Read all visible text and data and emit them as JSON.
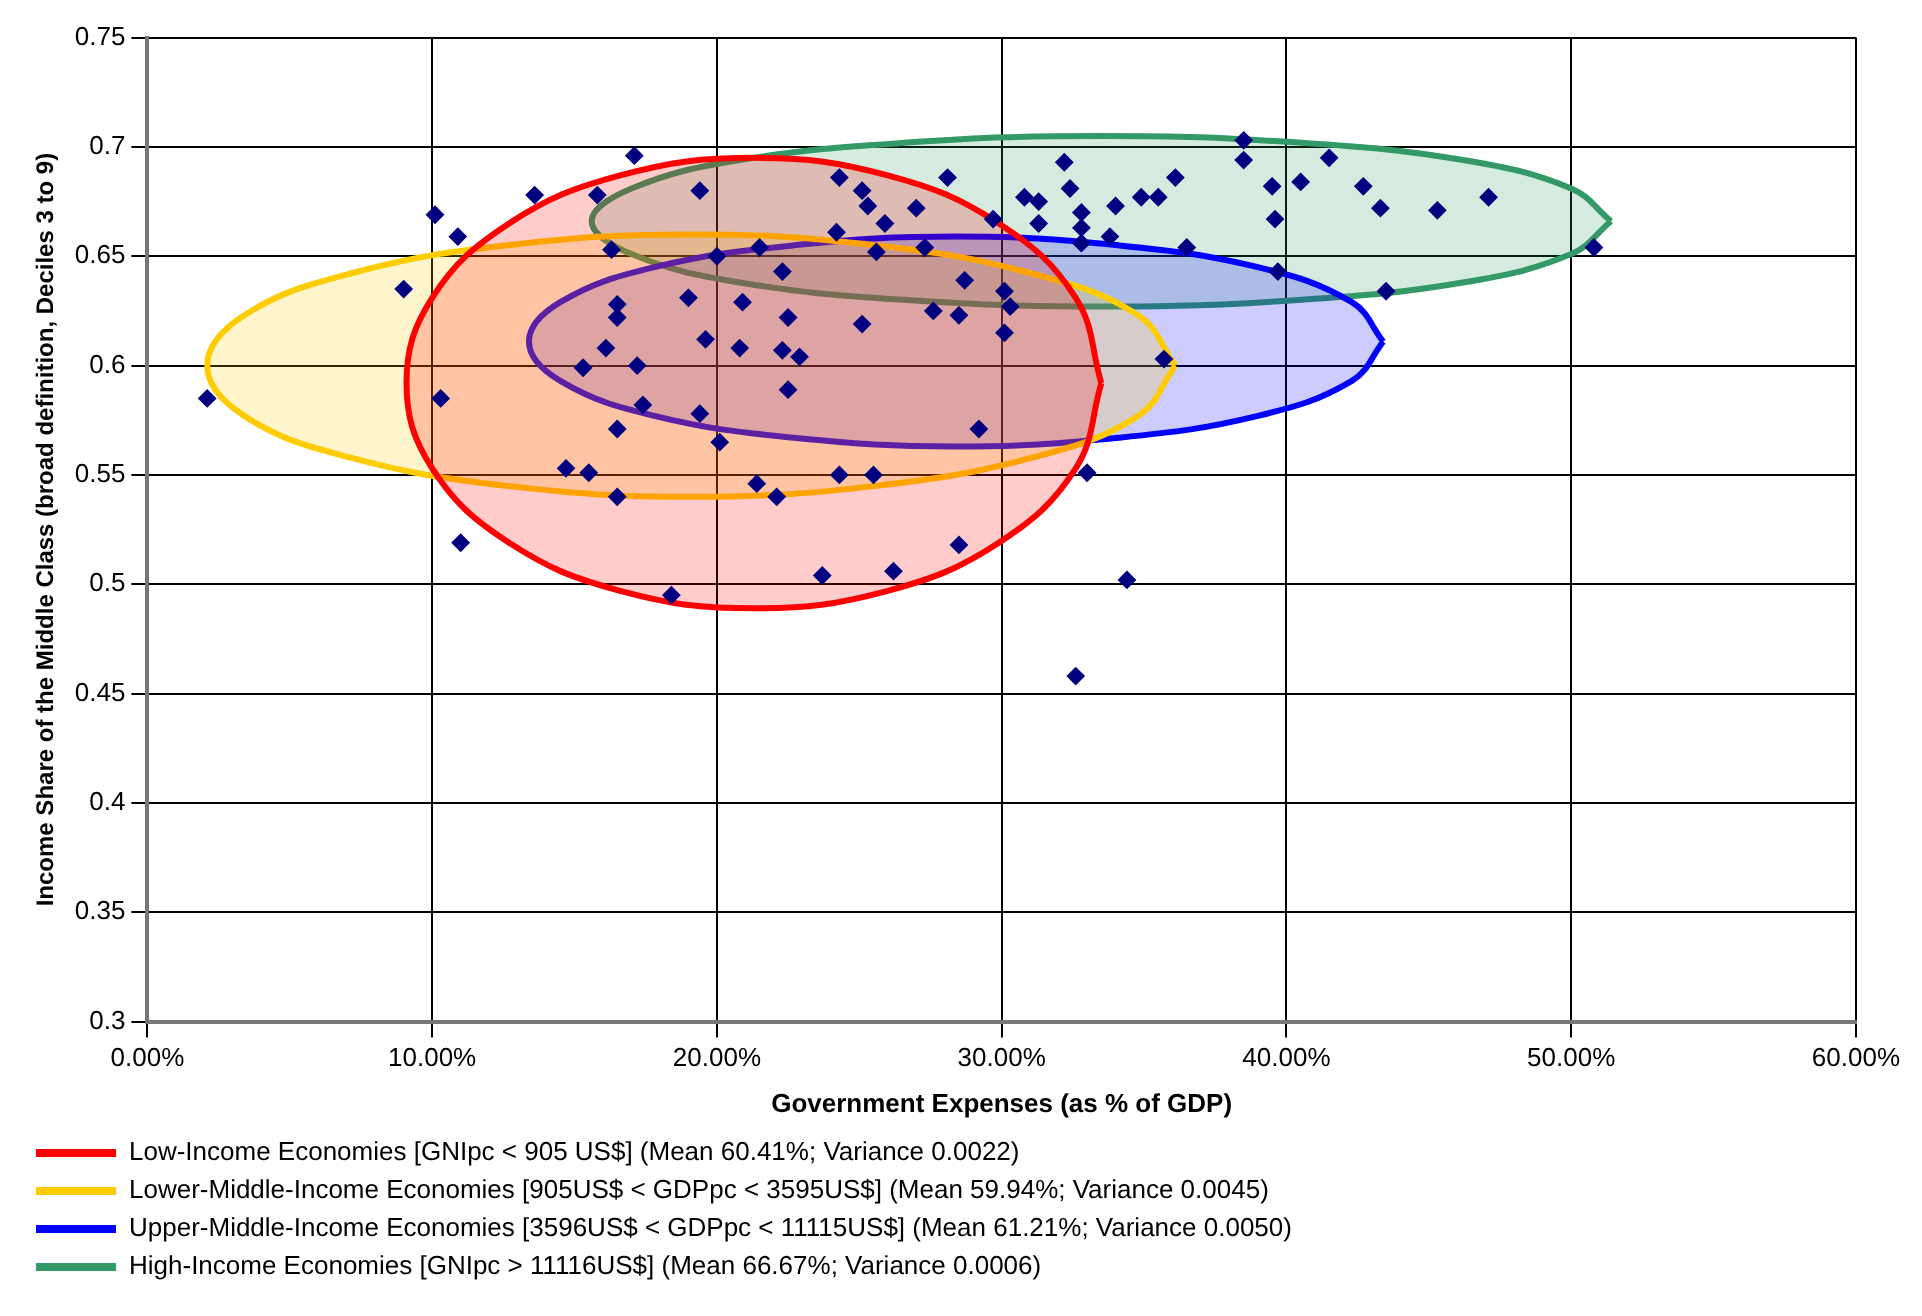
{
  "chart_data": {
    "type": "scatter",
    "xlabel": "Government Expenses (as % of GDP)",
    "ylabel": "Income Share of the Middle Class (broad definition, Deciles 3 to 9)",
    "xlim": [
      0,
      60
    ],
    "xticks": [
      {
        "value": 0,
        "label": "0.00%"
      },
      {
        "value": 10,
        "label": "10.00%"
      },
      {
        "value": 20,
        "label": "20.00%"
      },
      {
        "value": 30,
        "label": "30.00%"
      },
      {
        "value": 40,
        "label": "40.00%"
      },
      {
        "value": 50,
        "label": "50.00%"
      },
      {
        "value": 60,
        "label": "60.00%"
      }
    ],
    "ylim": [
      0.3,
      0.75
    ],
    "yticks": [
      0.3,
      0.35,
      0.4,
      0.45,
      0.5,
      0.55,
      0.6,
      0.65,
      0.7,
      0.75
    ],
    "grid": true,
    "legend": "bottom",
    "marker": "diamond",
    "series": [
      {
        "type": "area",
        "marker": "none",
        "name": "Low-Income Economies [GNIpc < 905 US$] (Mean 60.41%; Variance 0.0022)",
        "color": "#ff0000",
        "x": [
          33.5,
          32.6,
          29.9,
          26.0,
          21.3,
          16.6,
          12.7,
          10.0,
          9.1,
          10.0,
          12.7,
          16.6,
          21.3,
          26.0,
          29.9,
          32.6,
          33.5
        ],
        "values": [
          0.592,
          0.631,
          0.665,
          0.687,
          0.695,
          0.687,
          0.665,
          0.631,
          0.592,
          0.553,
          0.519,
          0.497,
          0.489,
          0.497,
          0.519,
          0.553,
          0.592
        ]
      },
      {
        "type": "area",
        "marker": "none",
        "name": "Lower-Middle-Income Economies [905US$ < GDPpc < 3595US$] (Mean 59.94%; Variance 0.0045)",
        "color": "#ffcc00",
        "x": [
          36.1,
          34.8,
          31.1,
          25.6,
          19.1,
          12.6,
          7.1,
          3.4,
          2.1,
          3.4,
          7.1,
          12.6,
          19.1,
          25.6,
          31.1,
          34.8,
          36.1
        ],
        "values": [
          0.6,
          0.623,
          0.642,
          0.655,
          0.66,
          0.655,
          0.642,
          0.623,
          0.6,
          0.577,
          0.558,
          0.545,
          0.54,
          0.545,
          0.558,
          0.577,
          0.6
        ]
      },
      {
        "type": "area",
        "marker": "none",
        "name": "Upper-Middle-Income Economies [3596US$ < GDPpc < 11115US$] (Mean 61.21%; Variance 0.0050)",
        "color": "#0000ff",
        "x": [
          43.4,
          42.3,
          39.0,
          34.1,
          28.4,
          22.7,
          17.8,
          14.5,
          13.4,
          14.5,
          17.8,
          22.7,
          28.4,
          34.1,
          39.0,
          42.3,
          43.4
        ],
        "values": [
          0.611,
          0.629,
          0.645,
          0.655,
          0.659,
          0.655,
          0.645,
          0.629,
          0.611,
          0.593,
          0.577,
          0.567,
          0.563,
          0.567,
          0.577,
          0.593,
          0.611
        ]
      },
      {
        "type": "area",
        "marker": "none",
        "name": "High-Income Economies [GNIpc > 11116US$] (Mean 66.67%; Variance 0.0006)",
        "color": "#339966",
        "x": [
          51.4,
          50.0,
          46.2,
          40.4,
          33.5,
          26.7,
          20.8,
          17.0,
          15.6,
          17.0,
          20.8,
          26.7,
          33.5,
          40.4,
          46.2,
          50.0,
          51.4
        ],
        "values": [
          0.666,
          0.681,
          0.694,
          0.702,
          0.705,
          0.702,
          0.694,
          0.681,
          0.666,
          0.651,
          0.638,
          0.63,
          0.627,
          0.63,
          0.638,
          0.651,
          0.666
        ]
      },
      {
        "color": "#000080",
        "x": [
          2.1,
          9.0,
          10.1,
          10.3,
          10.9,
          11.0,
          13.6,
          14.7,
          15.5,
          15.3,
          15.8,
          16.1,
          16.3,
          16.5,
          16.5,
          16.5,
          16.5,
          17.1,
          17.2,
          17.4,
          18.4,
          19.0,
          19.4,
          19.4,
          19.6,
          20.0,
          20.1,
          20.8,
          20.9,
          21.4,
          21.5,
          22.1,
          22.3,
          22.3,
          22.5,
          22.5,
          22.9,
          23.7,
          24.2,
          24.3,
          24.3,
          25.1,
          25.1,
          25.3,
          25.5,
          25.6,
          25.9,
          26.2,
          27.0,
          27.3,
          27.6,
          28.1,
          28.5,
          28.5,
          28.7,
          29.2,
          29.7,
          30.1,
          30.1,
          30.3,
          30.8,
          31.3,
          31.3,
          32.2,
          32.4,
          32.6,
          32.8,
          32.8,
          32.8,
          33.0,
          33.8,
          34.0,
          34.4,
          34.9,
          35.5,
          35.7,
          36.1,
          36.5,
          38.5,
          38.5,
          39.5,
          39.6,
          39.7,
          40.5,
          41.5,
          42.7,
          43.3,
          43.5,
          45.3,
          47.1,
          50.8
        ],
        "values": [
          0.585,
          0.635,
          0.669,
          0.585,
          0.659,
          0.519,
          0.678,
          0.553,
          0.551,
          0.599,
          0.678,
          0.608,
          0.653,
          0.628,
          0.622,
          0.571,
          0.54,
          0.696,
          0.6,
          0.582,
          0.495,
          0.631,
          0.68,
          0.578,
          0.612,
          0.65,
          0.565,
          0.608,
          0.629,
          0.546,
          0.654,
          0.54,
          0.643,
          0.607,
          0.622,
          0.589,
          0.604,
          0.504,
          0.661,
          0.686,
          0.55,
          0.68,
          0.619,
          0.673,
          0.55,
          0.652,
          0.665,
          0.506,
          0.672,
          0.654,
          0.625,
          0.686,
          0.623,
          0.518,
          0.639,
          0.571,
          0.667,
          0.634,
          0.615,
          0.627,
          0.677,
          0.675,
          0.665,
          0.693,
          0.681,
          0.458,
          0.67,
          0.663,
          0.656,
          0.551,
          0.659,
          0.673,
          0.502,
          0.677,
          0.677,
          0.603,
          0.686,
          0.654,
          0.703,
          0.694,
          0.682,
          0.667,
          0.643,
          0.684,
          0.695,
          0.682,
          0.672,
          0.634,
          0.671,
          0.677,
          0.654
        ]
      }
    ]
  }
}
